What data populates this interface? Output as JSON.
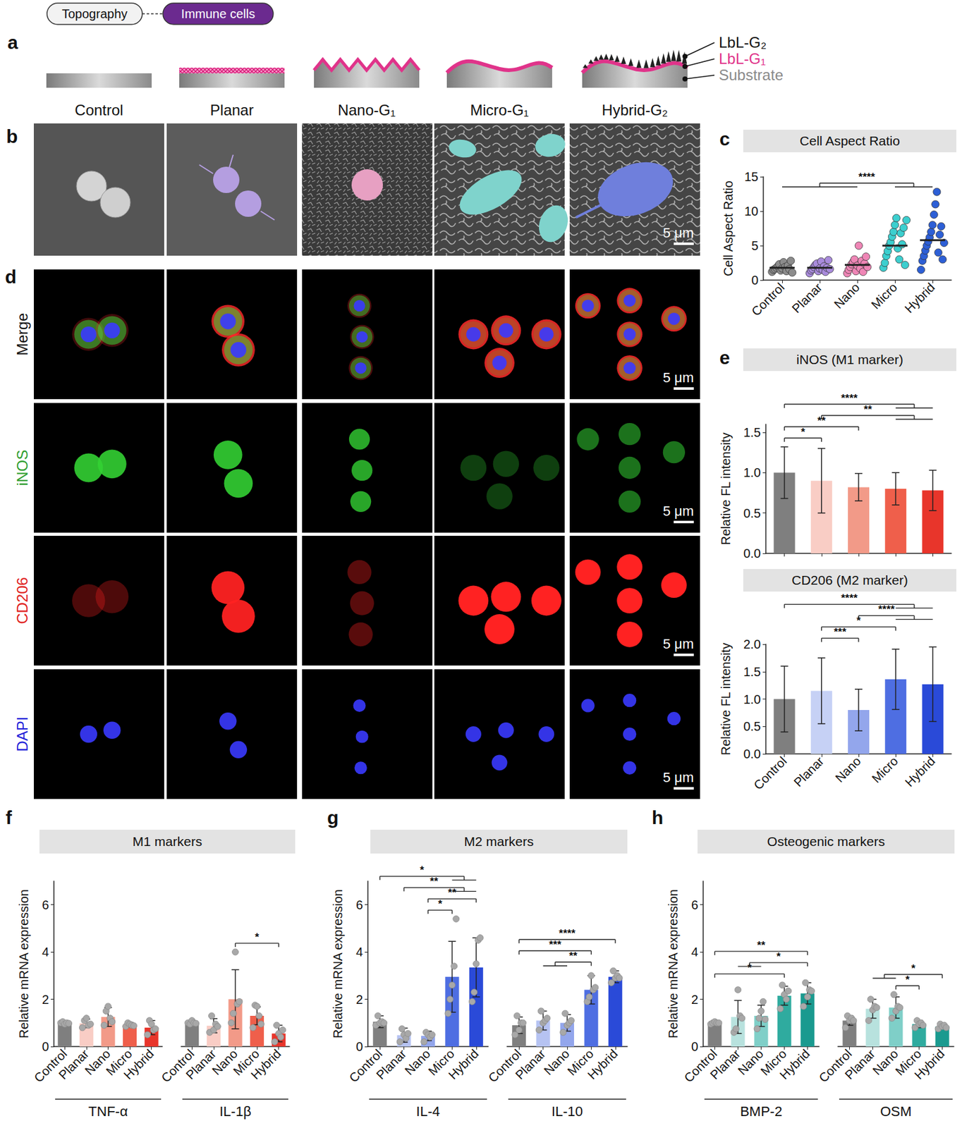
{
  "header": {
    "tags": [
      "Topography",
      "Immune cells"
    ]
  },
  "panel_a": {
    "letter": "a",
    "samples": [
      "Control",
      "Planar",
      "Nano-G₁",
      "Micro-G₁",
      "Hybrid-G₂"
    ],
    "layers": [
      "LbL-G₂",
      "LbL-G₁",
      "Substrate"
    ]
  },
  "panel_b": {
    "letter": "b",
    "scale_bar": "5 μm"
  },
  "panel_d": {
    "letter": "d",
    "rows": [
      "Merge",
      "iNOS",
      "CD206",
      "DAPI"
    ],
    "scale_bar": "5 μm"
  },
  "chart_data": [
    {
      "letter": "c",
      "type": "scatter",
      "title": "Cell Aspect Ratio",
      "y_label": "Cell Aspect Ratio",
      "categories": [
        "Control",
        "Planar",
        "Nano",
        "Micro",
        "Hybrid"
      ],
      "colors": [
        "#8c8c8c",
        "#a98bdc",
        "#ef86b6",
        "#3ccfcf",
        "#2d5fd6"
      ],
      "ylim": [
        0,
        15
      ],
      "yticks": [
        0,
        5,
        10,
        15
      ],
      "grid": false,
      "groups": [
        {
          "values": [
            1.8,
            1.8,
            2.2,
            5.0,
            5.8
          ],
          "points": [
            [
              1.2,
              1.5,
              1.6,
              1.8,
              2.0,
              2.3,
              1.4,
              1.7,
              2.6,
              1.9,
              1.3,
              2.1,
              1.6,
              2.8,
              1.1
            ],
            [
              1.0,
              1.4,
              1.6,
              1.9,
              2.2,
              2.4,
              1.3,
              1.7,
              2.7,
              1.5,
              2.0,
              1.2,
              1.8,
              2.9,
              1.6
            ],
            [
              1.0,
              1.5,
              1.9,
              2.3,
              2.6,
              3.0,
              1.3,
              2.1,
              5.0,
              1.7,
              2.8,
              1.2,
              2.4,
              3.4,
              1.9
            ],
            [
              1.8,
              2.5,
              3.5,
              4.2,
              5.0,
              5.5,
              6.3,
              7.0,
              8.0,
              9.0,
              4.6,
              3.0,
              6.8,
              5.2,
              7.6,
              2.2,
              8.7
            ],
            [
              1.5,
              2.8,
              3.5,
              4.3,
              5.0,
              5.6,
              6.2,
              7.0,
              8.0,
              9.5,
              11.0,
              12.8,
              4.0,
              6.6,
              7.8,
              3.0,
              5.4
            ]
          ]
        }
      ],
      "significance": [
        {
          "from": [
            "Control",
            "Planar",
            "Nano"
          ],
          "to": [
            "Micro",
            "Hybrid"
          ],
          "label": "****"
        }
      ]
    },
    {
      "letter": "e",
      "type": "bar",
      "title": "iNOS (M1 marker)",
      "y_label": "Relative FL intensity",
      "categories": [
        "Control",
        "Planar",
        "Nano",
        "Micro",
        "Hybrid"
      ],
      "colors": [
        "#7f7f7f",
        "#f9cdc5",
        "#f29a88",
        "#ef5f4b",
        "#e8352b"
      ],
      "ylim": [
        0,
        1.6
      ],
      "yticks": [
        {
          "value": 0,
          "label": "0.0"
        },
        0.5,
        {
          "value": 1,
          "label": "1.0"
        },
        1.5
      ],
      "grid": false,
      "tick_labels": "y",
      "groups": [
        {
          "values": [
            1.0,
            0.9,
            0.82,
            0.8,
            0.78
          ],
          "errors": [
            0.32,
            0.4,
            0.17,
            0.2,
            0.25
          ]
        }
      ],
      "significance": [
        {
          "from": [
            "Control"
          ],
          "to": [
            "Planar"
          ],
          "label": "*"
        },
        {
          "from": [
            "Control"
          ],
          "to": [
            "Nano"
          ],
          "label": "**"
        },
        {
          "from": [
            "Planar"
          ],
          "to": [
            "Micro",
            "Hybrid"
          ],
          "label": "**"
        },
        {
          "from": [
            "Control"
          ],
          "to": [
            "Micro",
            "Hybrid"
          ],
          "label": "****"
        }
      ]
    },
    {
      "type": "bar",
      "title": "CD206 (M2 marker)",
      "y_label": "Relative FL intensity",
      "categories": [
        "Control",
        "Planar",
        "Nano",
        "Micro",
        "Hybrid"
      ],
      "colors": [
        "#7f7f7f",
        "#c6d1f5",
        "#93a6ec",
        "#4e6ee2",
        "#2a4ad8"
      ],
      "ylim": [
        0,
        2
      ],
      "yticks": [
        {
          "value": 0,
          "label": "0.0"
        },
        0.5,
        {
          "value": 1,
          "label": "1.0"
        },
        1.5,
        {
          "value": 2,
          "label": "2.0"
        }
      ],
      "grid": false,
      "groups": [
        {
          "values": [
            1.0,
            1.15,
            0.8,
            1.36,
            1.27
          ],
          "errors": [
            0.6,
            0.6,
            0.38,
            0.55,
            0.68
          ]
        }
      ],
      "significance": [
        {
          "from": [
            "Planar"
          ],
          "to": [
            "Nano"
          ],
          "label": "***"
        },
        {
          "from": [
            "Planar"
          ],
          "to": [
            "Micro"
          ],
          "label": "*"
        },
        {
          "from": [
            "Nano"
          ],
          "to": [
            "Micro",
            "Hybrid"
          ],
          "label": "****"
        },
        {
          "from": [
            "Control"
          ],
          "to": [
            "Micro",
            "Hybrid"
          ],
          "label": "****"
        }
      ]
    },
    {
      "letter": "f",
      "type": "bar",
      "title": "M1 markers",
      "y_label": "Relative mRNA expression",
      "categories": [
        "Control",
        "Planar",
        "Nano",
        "Micro",
        "Hybrid"
      ],
      "colors": [
        "#7f7f7f",
        "#f9cdc5",
        "#f29a88",
        "#ef5f4b",
        "#e8352b"
      ],
      "ylim": [
        0,
        7
      ],
      "yticks": [
        0,
        2,
        4,
        6
      ],
      "grid": false,
      "groups": [
        {
          "name": "TNF-α",
          "values": [
            1.0,
            0.98,
            1.25,
            0.92,
            0.8
          ],
          "errors": [
            0.05,
            0.18,
            0.4,
            0.1,
            0.3
          ],
          "points": [
            [
              1.0,
              1.05,
              0.95,
              1.0,
              0.98
            ],
            [
              0.8,
              1.1,
              1.2,
              0.9,
              0.95
            ],
            [
              0.9,
              1.5,
              1.7,
              1.2,
              1.05
            ],
            [
              0.85,
              1.0,
              0.95,
              0.9,
              0.88
            ],
            [
              0.5,
              1.1,
              0.95,
              0.7,
              0.75
            ]
          ]
        },
        {
          "name": "IL-1β",
          "values": [
            1.0,
            0.88,
            2.0,
            1.3,
            0.55
          ],
          "errors": [
            0.08,
            0.3,
            1.25,
            0.38,
            0.35
          ],
          "points": [
            [
              1.0,
              0.95,
              1.1,
              1.0,
              0.98
            ],
            [
              0.6,
              1.3,
              0.7,
              0.95,
              0.85
            ],
            [
              1.0,
              1.4,
              4.0,
              1.8,
              1.9
            ],
            [
              0.8,
              1.75,
              1.7,
              1.3,
              0.95
            ],
            [
              0.2,
              0.9,
              0.55,
              0.4,
              0.7
            ]
          ]
        }
      ],
      "significance": [
        {
          "group": "IL-1β",
          "from": [
            "Nano"
          ],
          "to": [
            "Hybrid"
          ],
          "label": "*"
        }
      ]
    },
    {
      "letter": "g",
      "type": "bar",
      "title": "M2 markers",
      "y_label": "Relative mRNA expression",
      "categories": [
        "Control",
        "Planar",
        "Nano",
        "Micro",
        "Hybrid"
      ],
      "colors": [
        "#7f7f7f",
        "#b6c3f2",
        "#93a6ec",
        "#4e6ee2",
        "#2a4ad8"
      ],
      "ylim": [
        0,
        7
      ],
      "yticks": [
        0,
        2,
        4,
        6
      ],
      "grid": false,
      "groups": [
        {
          "name": "IL-4",
          "values": [
            1.05,
            0.48,
            0.45,
            2.95,
            3.35
          ],
          "errors": [
            0.25,
            0.3,
            0.2,
            1.5,
            1.25
          ],
          "points": [
            [
              0.9,
              1.3,
              1.0,
              1.05,
              1.0
            ],
            [
              0.2,
              0.75,
              0.5,
              0.35,
              0.55
            ],
            [
              0.2,
              0.6,
              0.5,
              0.4,
              0.5
            ],
            [
              1.4,
              2.0,
              2.6,
              3.4,
              5.4
            ],
            [
              1.9,
              2.3,
              3.5,
              4.5,
              4.6
            ]
          ]
        },
        {
          "name": "IL-10",
          "values": [
            0.9,
            1.1,
            1.0,
            2.4,
            2.95
          ],
          "errors": [
            0.35,
            0.4,
            0.35,
            0.6,
            0.25
          ],
          "points": [
            [
              0.5,
              1.3,
              0.7,
              1.0,
              1.0
            ],
            [
              0.7,
              1.5,
              1.0,
              1.1,
              1.2
            ],
            [
              0.6,
              1.4,
              0.9,
              1.0,
              1.1
            ],
            [
              1.9,
              2.1,
              3.0,
              2.4,
              2.5
            ],
            [
              2.7,
              3.2,
              2.9,
              3.0,
              2.9
            ]
          ]
        }
      ],
      "significance": [
        {
          "group": "IL-4",
          "from": [
            "Nano"
          ],
          "to": [
            "Micro"
          ],
          "label": "*"
        },
        {
          "group": "IL-4",
          "from": [
            "Nano"
          ],
          "to": [
            "Hybrid"
          ],
          "label": "**"
        },
        {
          "group": "IL-4",
          "from": [
            "Planar"
          ],
          "to": [
            "Micro",
            "Hybrid"
          ],
          "label": "**"
        },
        {
          "group": "IL-4",
          "from": [
            "Control"
          ],
          "to": [
            "Micro",
            "Hybrid"
          ],
          "label": "*"
        },
        {
          "group": "IL-10",
          "from": [
            "Planar",
            "Nano"
          ],
          "to": [
            "Micro"
          ],
          "label": "**"
        },
        {
          "group": "IL-10",
          "from": [
            "Control"
          ],
          "to": [
            "Micro"
          ],
          "label": "***"
        },
        {
          "group": "IL-10",
          "from": [
            "Control"
          ],
          "to": [
            "Hybrid"
          ],
          "label": "****"
        }
      ]
    },
    {
      "letter": "h",
      "type": "bar",
      "title": "Osteogenic markers",
      "y_label": "Relative mRNA expression",
      "categories": [
        "Control",
        "Planar",
        "Nano",
        "Micro",
        "Hybrid"
      ],
      "colors": [
        "#7f7f7f",
        "#b8e2de",
        "#7fcfc8",
        "#2fab9f",
        "#1a9a8f"
      ],
      "ylim": [
        0,
        7
      ],
      "yticks": [
        0,
        2,
        4,
        6
      ],
      "grid": false,
      "groups": [
        {
          "name": "BMP-2",
          "values": [
            1.0,
            1.25,
            1.3,
            2.15,
            2.25
          ],
          "errors": [
            0.05,
            0.7,
            0.45,
            0.4,
            0.45
          ],
          "points": [
            [
              0.95,
              1.0,
              1.05,
              1.0,
              1.0
            ],
            [
              0.6,
              0.75,
              2.4,
              1.3,
              1.2
            ],
            [
              0.75,
              1.2,
              1.5,
              1.9,
              1.15
            ],
            [
              1.6,
              2.6,
              2.2,
              2.0,
              2.35
            ],
            [
              1.7,
              2.7,
              2.1,
              2.4,
              2.35
            ]
          ]
        },
        {
          "name": "OSM",
          "values": [
            1.1,
            1.6,
            1.65,
            0.95,
            0.85
          ],
          "errors": [
            0.2,
            0.4,
            0.45,
            0.15,
            0.1
          ],
          "points": [
            [
              0.8,
              1.3,
              1.1,
              1.2,
              1.1
            ],
            [
              1.1,
              2.0,
              1.55,
              1.7,
              1.65
            ],
            [
              1.2,
              2.2,
              1.5,
              1.7,
              1.65
            ],
            [
              0.8,
              1.1,
              0.95,
              1.0,
              0.9
            ],
            [
              0.75,
              0.95,
              0.85,
              0.9,
              0.8
            ]
          ]
        }
      ],
      "significance": [
        {
          "group": "BMP-2",
          "from": [
            "Control"
          ],
          "to": [
            "Micro"
          ],
          "label": "*"
        },
        {
          "group": "BMP-2",
          "from": [
            "Planar",
            "Nano"
          ],
          "to": [
            "Hybrid"
          ],
          "label": "*"
        },
        {
          "group": "BMP-2",
          "from": [
            "Control"
          ],
          "to": [
            "Hybrid"
          ],
          "label": "**"
        },
        {
          "group": "OSM",
          "from": [
            "Nano"
          ],
          "to": [
            "Micro"
          ],
          "label": "*"
        },
        {
          "group": "OSM",
          "from": [
            "Planar",
            "Nano"
          ],
          "to": [
            "Hybrid"
          ],
          "label": "*"
        }
      ]
    }
  ]
}
